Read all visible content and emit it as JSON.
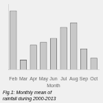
{
  "chart_data": {
    "type": "bar",
    "title": "Fig.1: Monthly mean of rainfall during 2000-2013",
    "xlabel": "Month",
    "categories": [
      "Feb",
      "Mar",
      "Apr",
      "May",
      "Jun",
      "Jul",
      "Aug",
      "Sep",
      "Oct"
    ],
    "values": [
      90,
      15,
      38,
      42,
      48,
      65,
      72,
      32,
      18
    ],
    "color": "#c8c8c8",
    "edge_color": "#666666",
    "ylim": [
      0,
      100
    ],
    "grid": false,
    "tick_labels": "x"
  }
}
